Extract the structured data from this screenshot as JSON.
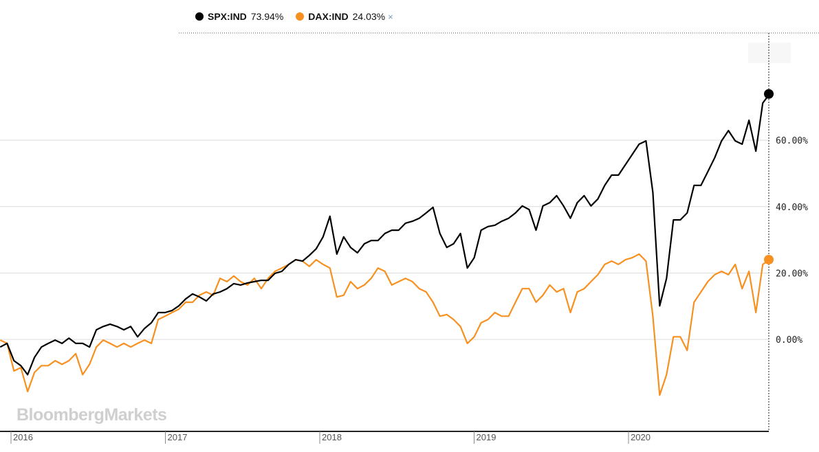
{
  "logo": "BloombergMarkets",
  "legend": [
    {
      "ticker": "SPX:IND",
      "value": "73.94%",
      "color": "#000000"
    },
    {
      "ticker": "DAX:IND",
      "value": "24.03%",
      "color": "#f7901e",
      "close": "×"
    }
  ],
  "chart_data": {
    "type": "line",
    "title": "",
    "xlabel": "",
    "ylabel": "",
    "x_start_year": 2015.93,
    "x_step_years": 0.0445,
    "ylim": [
      -27.7,
      92.3
    ],
    "yticks": [
      0,
      20,
      40,
      60
    ],
    "ytick_labels": [
      "0.00%",
      "20.00%",
      "40.00%",
      "60.00%"
    ],
    "xticks": [
      2016,
      2017,
      2018,
      2019,
      2020
    ],
    "xtick_labels": [
      "2016",
      "2017",
      "2018",
      "2019",
      "2020"
    ],
    "grid": true,
    "series": [
      {
        "name": "SPX:IND",
        "color": "#000000",
        "final_label": "73.94%",
        "values": [
          -2.3,
          -1.2,
          -6.4,
          -7.9,
          -10.6,
          -5.4,
          -2.3,
          -1.2,
          -0.2,
          -1.2,
          0.4,
          -1.2,
          -1.2,
          -2.3,
          2.9,
          3.9,
          4.6,
          3.9,
          2.9,
          3.9,
          0.8,
          3.3,
          5.0,
          8.1,
          8.1,
          8.7,
          10.1,
          12.2,
          13.7,
          12.8,
          11.6,
          13.7,
          14.3,
          15.3,
          16.8,
          16.4,
          17.0,
          17.4,
          17.8,
          17.8,
          19.9,
          20.5,
          22.6,
          24.0,
          23.6,
          25.3,
          27.3,
          30.9,
          37.1,
          25.7,
          30.9,
          27.7,
          26.1,
          28.8,
          29.8,
          29.8,
          31.9,
          32.9,
          32.9,
          35.0,
          35.6,
          36.5,
          38.1,
          39.8,
          31.9,
          27.7,
          28.8,
          31.9,
          21.5,
          24.6,
          32.9,
          34.0,
          34.4,
          35.6,
          36.5,
          38.1,
          40.2,
          39.1,
          32.9,
          40.2,
          41.2,
          43.3,
          40.2,
          36.5,
          41.2,
          43.3,
          40.2,
          42.3,
          46.4,
          49.5,
          49.5,
          52.6,
          55.7,
          58.8,
          59.8,
          44.3,
          10.1,
          18.4,
          36.0,
          36.0,
          38.1,
          46.4,
          46.4,
          50.5,
          54.7,
          59.8,
          62.9,
          59.8,
          58.8,
          66.0,
          56.7,
          71.2,
          73.94
        ]
      },
      {
        "name": "DAX:IND",
        "color": "#f7901e",
        "final_label": "24.03%",
        "values": [
          -0.2,
          -1.2,
          -9.5,
          -8.5,
          -15.7,
          -9.9,
          -7.9,
          -7.9,
          -6.4,
          -7.5,
          -6.4,
          -4.3,
          -10.6,
          -7.5,
          -2.3,
          -0.2,
          -1.2,
          -2.3,
          -1.2,
          -2.3,
          -1.2,
          -0.2,
          -1.2,
          6.0,
          7.0,
          8.1,
          9.1,
          11.2,
          11.2,
          13.3,
          14.3,
          13.3,
          18.4,
          17.4,
          19.1,
          17.4,
          16.4,
          18.4,
          15.3,
          18.4,
          20.5,
          21.5,
          22.6,
          24.0,
          23.6,
          22.0,
          24.0,
          22.6,
          21.5,
          12.8,
          13.3,
          17.4,
          15.3,
          16.4,
          18.4,
          21.5,
          20.5,
          16.4,
          17.4,
          18.4,
          17.4,
          15.3,
          14.3,
          11.2,
          7.0,
          7.5,
          6.0,
          3.9,
          -1.2,
          0.8,
          5.0,
          6.0,
          8.1,
          7.0,
          7.0,
          11.2,
          15.3,
          15.3,
          11.2,
          13.3,
          16.4,
          14.3,
          15.3,
          8.1,
          14.3,
          15.3,
          17.4,
          19.5,
          22.6,
          23.6,
          22.6,
          24.0,
          24.6,
          25.7,
          23.6,
          7.0,
          -16.8,
          -10.6,
          0.8,
          0.8,
          -3.3,
          11.2,
          14.3,
          17.4,
          19.5,
          20.5,
          19.5,
          22.6,
          15.3,
          20.5,
          8.1,
          22.6,
          24.03
        ]
      }
    ]
  }
}
